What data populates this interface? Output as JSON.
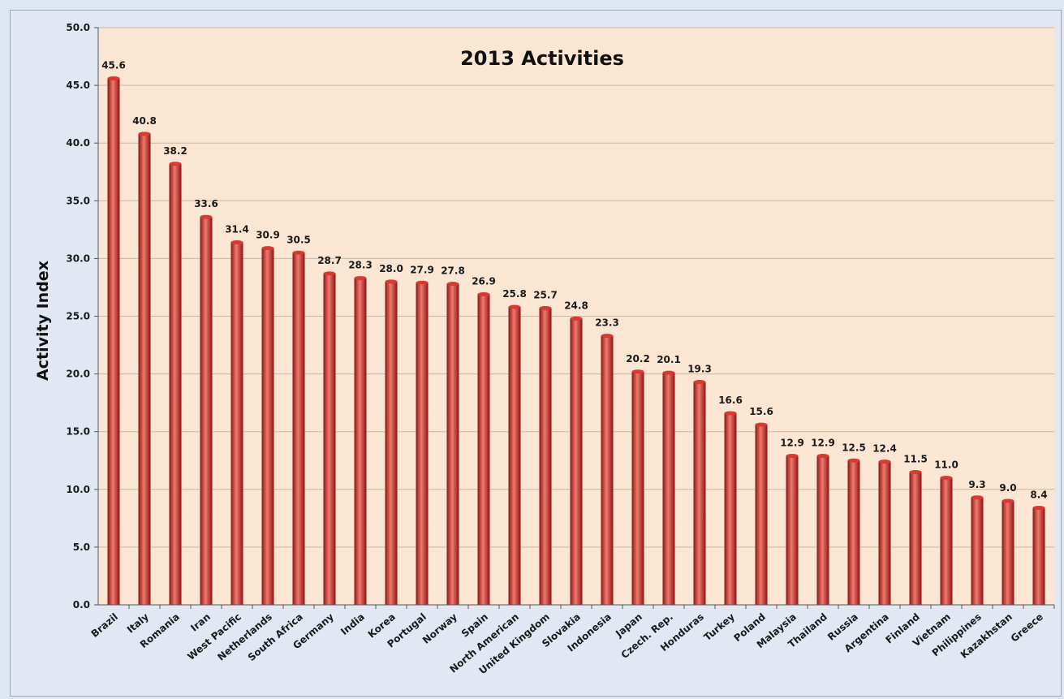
{
  "chart_data": {
    "type": "bar",
    "title": "2013 Activities",
    "xlabel": "",
    "ylabel": "Activity Index",
    "ylim": [
      0,
      50
    ],
    "yticks": [
      "0.0",
      "5.0",
      "10.0",
      "15.0",
      "20.0",
      "25.0",
      "30.0",
      "35.0",
      "40.0",
      "45.0",
      "50.0"
    ],
    "grid": true,
    "legend": "none",
    "categories": [
      "Brazil",
      "Italy",
      "Romania",
      "Iran",
      "West Pacific",
      "Netherlands",
      "South Africa",
      "Germany",
      "India",
      "Korea",
      "Portugal",
      "Norway",
      "Spain",
      "North American",
      "United Kingdom",
      "Slovakia",
      "Indonesia",
      "Japan",
      "Czech. Rep.",
      "Honduras",
      "Turkey",
      "Poland",
      "Malaysia",
      "Thailand",
      "Russia",
      "Argentina",
      "Finland",
      "Vietnam",
      "Philippines",
      "Kazakhstan",
      "Greece"
    ],
    "values": [
      45.6,
      40.8,
      38.2,
      33.6,
      31.4,
      30.9,
      30.5,
      28.7,
      28.3,
      28.0,
      27.9,
      27.8,
      26.9,
      25.8,
      25.7,
      24.8,
      23.3,
      20.2,
      20.1,
      19.3,
      16.6,
      15.6,
      12.9,
      12.9,
      12.5,
      12.4,
      11.5,
      11.0,
      9.3,
      9.0,
      8.4
    ],
    "data_labels": [
      "45.6",
      "40.8",
      "38.2",
      "33.6",
      "31.4",
      "30.9",
      "30.5",
      "28.7",
      "28.3",
      "28.0",
      "27.9",
      "27.8",
      "26.9",
      "25.8",
      "25.7",
      "24.8",
      "23.3",
      "20.2",
      "20.1",
      "19.3",
      "16.6",
      "15.6",
      "12.9",
      "12.9",
      "12.5",
      "12.4",
      "11.5",
      "11.0",
      "9.3",
      "9.0",
      "8.4"
    ],
    "colors": {
      "plot_bg": "#fae6d2",
      "bar_dark": "#8e1414",
      "bar_mid": "#d83a32",
      "bar_light": "#ef7a6c",
      "grid": "#c9b9a6",
      "axis": "#555555"
    }
  }
}
